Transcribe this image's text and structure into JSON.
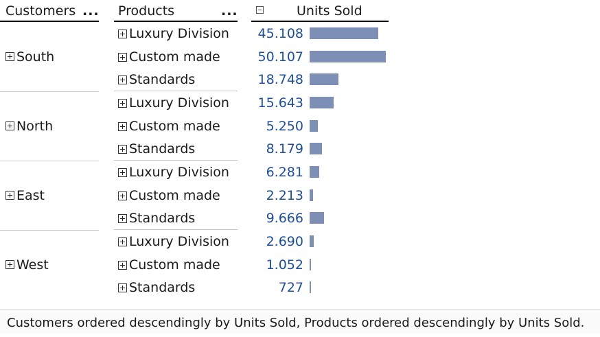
{
  "header": {
    "customers_label": "Customers",
    "customers_menu": "...",
    "products_label": "Products",
    "products_menu": "...",
    "units_label": "Units Sold"
  },
  "colors": {
    "bar": "#7d8fb5",
    "value_text": "#1f4e99"
  },
  "bar_scale_max": 50.107,
  "customers": [
    {
      "name": "South",
      "products": [
        {
          "name": "Luxury Division",
          "units": "45.108",
          "value": 45.108
        },
        {
          "name": "Custom made",
          "units": "50.107",
          "value": 50.107
        },
        {
          "name": "Standards",
          "units": "18.748",
          "value": 18.748
        }
      ]
    },
    {
      "name": "North",
      "products": [
        {
          "name": "Luxury Division",
          "units": "15.643",
          "value": 15.643
        },
        {
          "name": "Custom made",
          "units": "5.250",
          "value": 5.25
        },
        {
          "name": "Standards",
          "units": "8.179",
          "value": 8.179
        }
      ]
    },
    {
      "name": "East",
      "products": [
        {
          "name": "Luxury Division",
          "units": "6.281",
          "value": 6.281
        },
        {
          "name": "Custom made",
          "units": "2.213",
          "value": 2.213
        },
        {
          "name": "Standards",
          "units": "9.666",
          "value": 9.666
        }
      ]
    },
    {
      "name": "West",
      "products": [
        {
          "name": "Luxury Division",
          "units": "2.690",
          "value": 2.69
        },
        {
          "name": "Custom made",
          "units": "1.052",
          "value": 1.052
        },
        {
          "name": "Standards",
          "units": "727",
          "value": 0.727
        }
      ]
    }
  ],
  "footer_text": "Customers ordered descendingly by Units Sold, Products ordered descendingly by Units Sold."
}
